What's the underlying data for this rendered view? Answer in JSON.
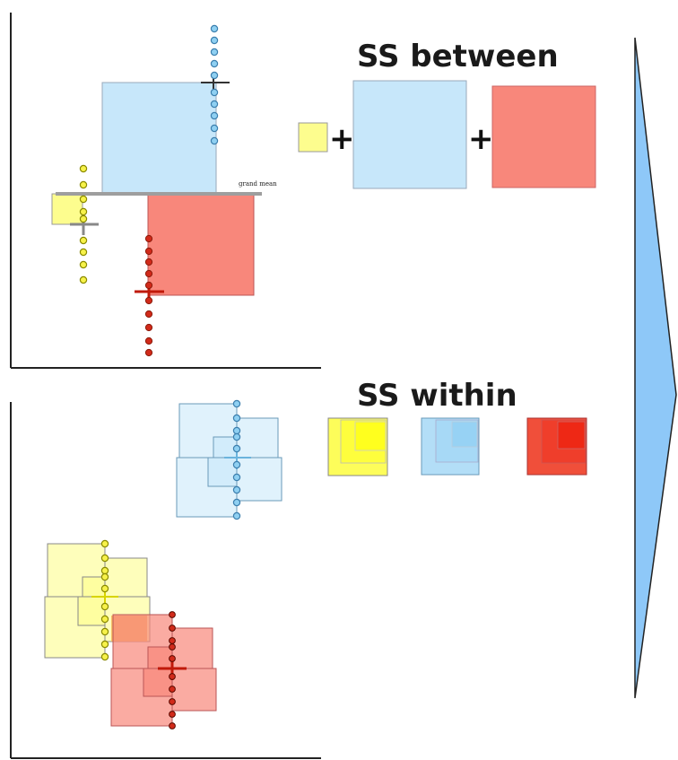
{
  "headings": {
    "between": "SS between",
    "within": "SS within"
  },
  "grand_mean_label": "grand mean",
  "operators": {
    "plus_1": "+",
    "plus_2": "+"
  },
  "groups": [
    {
      "name": "",
      "color_fill": "#fdfd8e",
      "color_point": "#f7f24a",
      "color_dark": "#e5e000"
    },
    {
      "name": "",
      "color_fill": "#c7e7fa",
      "color_point": "#8fd0f2",
      "color_dark": "#6bb4dd"
    },
    {
      "name": "",
      "color_fill": "#f8877b",
      "color_point": "#d12a1a",
      "color_dark": "#c01a0a"
    }
  ],
  "colors": {
    "arrow_fill": "#8ec8f8",
    "axis": "#222222",
    "grand_mean_line": "#9e9e9e"
  }
}
